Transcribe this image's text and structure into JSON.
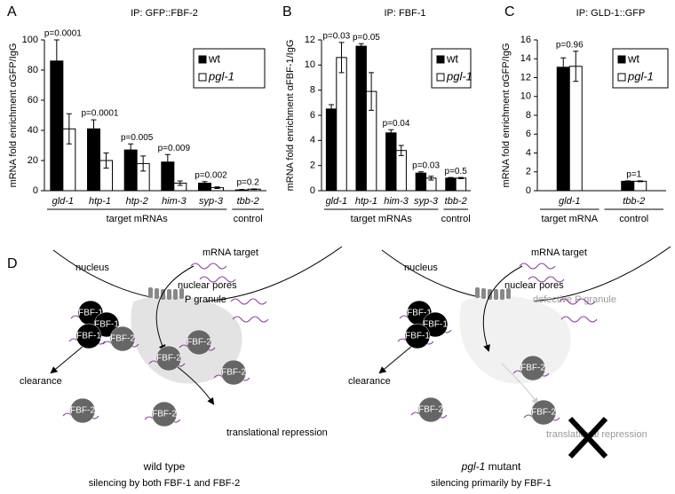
{
  "chart_data": [
    {
      "type": "bar",
      "panel": "A",
      "title": "IP: GFP::FBF-2",
      "ylabel": "mRNA fold enrichment αGFP/IgG",
      "categories": [
        "gld-1",
        "htp-1",
        "htp-2",
        "him-3",
        "syp-3",
        "tbb-2"
      ],
      "group_labels": [
        "target mRNAs",
        "control"
      ],
      "annotations": [
        "p=0.0001",
        "p=0.0001",
        "p=0.005",
        "p=0.009",
        "p=0.002",
        "p=0.2"
      ],
      "series": [
        {
          "name": "wt",
          "color": "#000000",
          "values": [
            86,
            41,
            27,
            19,
            5,
            0.5
          ],
          "errors": [
            14,
            6,
            4,
            5,
            1,
            0.3
          ]
        },
        {
          "name": "pgl-1",
          "color": "#ffffff",
          "values": [
            41,
            20,
            18,
            5,
            2,
            1
          ],
          "errors": [
            10,
            5,
            5,
            1.5,
            0.5,
            0.2
          ]
        }
      ],
      "ylim": [
        0,
        100
      ],
      "yticks": [
        0,
        20,
        40,
        60,
        80,
        100
      ],
      "legend": "upper right"
    },
    {
      "type": "bar",
      "panel": "B",
      "title": "IP: FBF-1",
      "ylabel": "mRNA fold enrichment αFBF-1/IgG",
      "categories": [
        "gld-1",
        "htp-1",
        "him-3",
        "syp-3",
        "tbb-2"
      ],
      "group_labels": [
        "target mRNAs",
        "control"
      ],
      "annotations": [
        "p=0.03",
        "p=0.05",
        "p=0.04",
        "p=0.03",
        "p=0.5"
      ],
      "series": [
        {
          "name": "wt",
          "color": "#000000",
          "values": [
            6.5,
            11.5,
            4.6,
            1.4,
            1.0
          ],
          "errors": [
            0.35,
            0.2,
            0.25,
            0.1,
            0.05
          ]
        },
        {
          "name": "pgl-1",
          "color": "#ffffff",
          "values": [
            10.6,
            7.9,
            3.2,
            1.0,
            1.0
          ],
          "errors": [
            1.2,
            1.5,
            0.4,
            0.15,
            0.05
          ]
        }
      ],
      "ylim": [
        0,
        12
      ],
      "yticks": [
        0,
        2,
        4,
        6,
        8,
        10,
        12
      ],
      "legend": "upper right"
    },
    {
      "type": "bar",
      "panel": "C",
      "title": "IP: GLD-1::GFP",
      "ylabel": "mRNA fold enrichment αGFP/IgG",
      "categories": [
        "gld-1",
        "tbb-2"
      ],
      "group_labels": [
        "target mRNA",
        "control"
      ],
      "annotations": [
        "p=0.96",
        "p=1"
      ],
      "series": [
        {
          "name": "wt",
          "color": "#000000",
          "values": [
            13.1,
            1.0
          ],
          "errors": [
            1.0,
            0.05
          ]
        },
        {
          "name": "pgl-1",
          "color": "#ffffff",
          "values": [
            13.2,
            1.0
          ],
          "errors": [
            1.6,
            0.05
          ]
        }
      ],
      "ylim": [
        0,
        16
      ],
      "yticks": [
        0,
        2,
        4,
        6,
        8,
        10,
        12,
        14,
        16
      ],
      "legend": "upper right"
    }
  ],
  "diagram": {
    "panel": "D",
    "left": {
      "nucleus": "nucleus",
      "mrna_target": "mRNA target",
      "nuclear_pores": "nuclear pores",
      "granule": "P granule",
      "clearance": "clearance",
      "repression": "translational repression",
      "caption": "wild type",
      "subcaption": "silencing by both FBF-1 and FBF-2",
      "proteins": [
        "FBF-1",
        "FBF-1",
        "FBF-1",
        "FBF-2",
        "FBF-2",
        "FBF-2",
        "FBF-2",
        "FBF-2",
        "FBF-2"
      ]
    },
    "right": {
      "nucleus": "nucleus",
      "mrna_target": "mRNA target",
      "nuclear_pores": "nuclear pores",
      "granule": "defective P granule",
      "clearance": "clearance",
      "repression": "translational repression",
      "caption": "pgl-1",
      "caption_rest": "mutant",
      "subcaption": "silencing primarily by FBF-1",
      "proteins": [
        "FBF-1",
        "FBF-1",
        "FBF-1",
        "FBF-2",
        "FBF-2",
        "FBF-2"
      ]
    }
  }
}
